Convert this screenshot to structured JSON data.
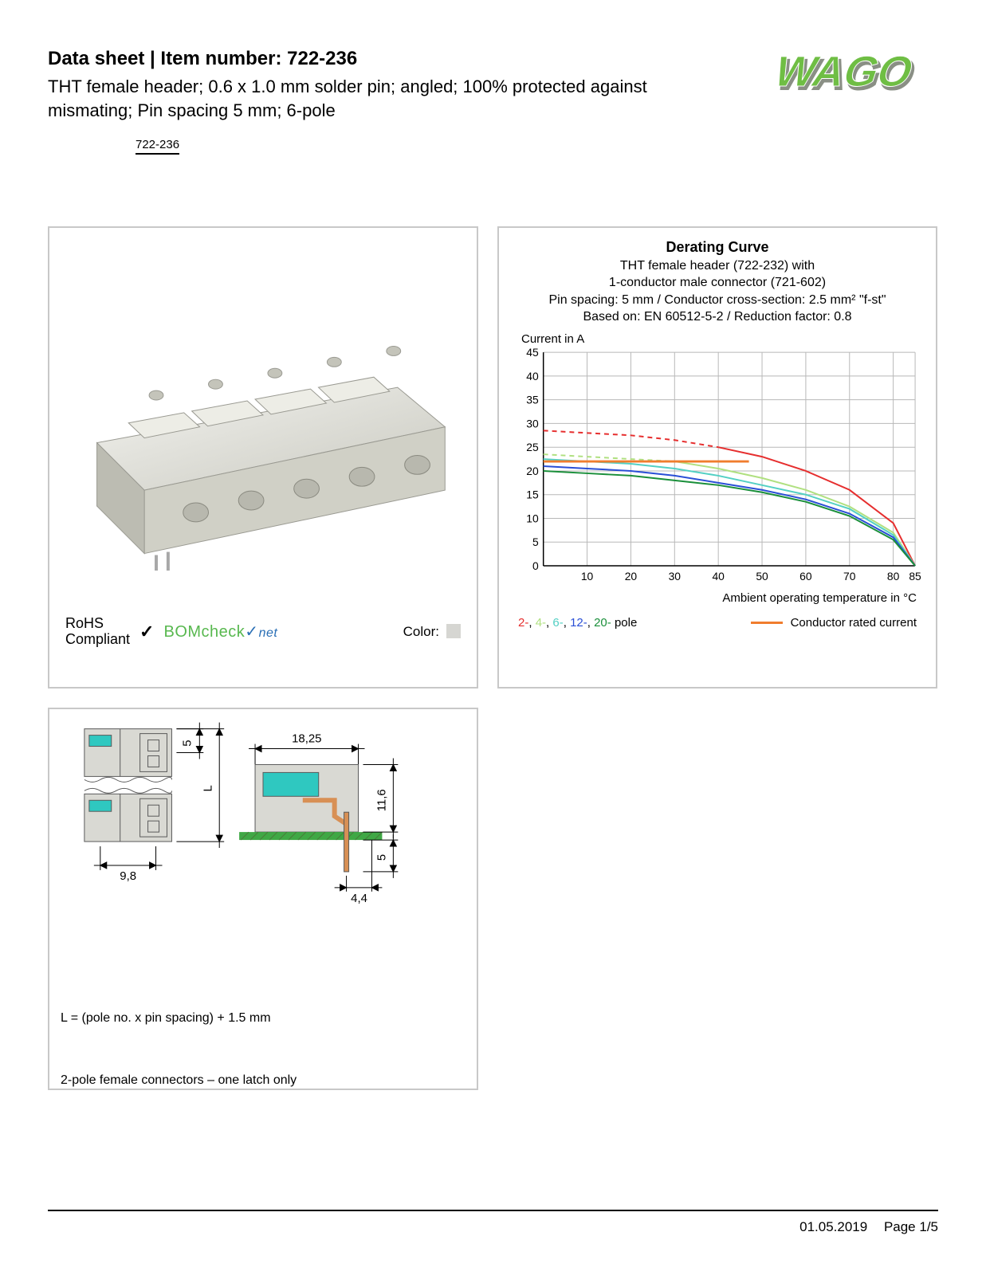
{
  "header": {
    "title_prefix": "Data sheet  |  Item number: ",
    "item_number": "722-236",
    "subtitle": "THT female header; 0.6 x 1.0 mm solder pin; angled; 100% protected against mismating; Pin spacing 5 mm; 6-pole",
    "badge": "722-236"
  },
  "logo": {
    "text": "WAGO",
    "color_main": "#6fbe44",
    "color_shadow": "#8a8f85"
  },
  "product_panel": {
    "rohs_line1": "RoHS",
    "rohs_line2": "Compliant",
    "bomcheck_main": "BOM",
    "bomcheck_mid": "check",
    "bomcheck_net": "net",
    "color_label": "Color:",
    "swatch_color": "#d6d6d2",
    "body_color": "#e2e2da",
    "body_shadow": "#c9c9c0",
    "body_highlight": "#f2f2ee"
  },
  "chart": {
    "title": "Derating Curve",
    "sub1": "THT female header  (722-232) with",
    "sub2": "1-conductor male connector (721-602)",
    "sub3": "Pin spacing: 5 mm / Conductor cross-section: 2.5 mm² \"f-st\"",
    "sub4": "Based on: EN 60512-5-2 / Reduction factor: 0.8",
    "ylabel": "Current in A",
    "xlabel": "Ambient operating temperature in °C",
    "ylim": [
      0,
      45
    ],
    "ytick_step": 5,
    "xlim": [
      0,
      85
    ],
    "xticks": [
      10,
      20,
      30,
      40,
      50,
      60,
      70,
      80,
      85
    ],
    "grid_color": "#b8b8b8",
    "axis_color": "#000",
    "background_color": "#ffffff",
    "title_fontsize": 18,
    "label_fontsize": 15,
    "tick_fontsize": 14,
    "series": [
      {
        "name": "2-pole",
        "color": "#e62e2e",
        "solid_end_x": 40,
        "points": [
          [
            0,
            28.5
          ],
          [
            10,
            28
          ],
          [
            20,
            27.5
          ],
          [
            30,
            26.5
          ],
          [
            40,
            25
          ],
          [
            50,
            23
          ],
          [
            60,
            20
          ],
          [
            70,
            16
          ],
          [
            80,
            9
          ],
          [
            85,
            0
          ]
        ]
      },
      {
        "name": "4-pole",
        "color": "#b0e080",
        "solid_end_x": 30,
        "points": [
          [
            0,
            23.5
          ],
          [
            10,
            23
          ],
          [
            20,
            22.5
          ],
          [
            30,
            22
          ],
          [
            40,
            20.5
          ],
          [
            50,
            18.5
          ],
          [
            60,
            16
          ],
          [
            70,
            12.5
          ],
          [
            80,
            7
          ],
          [
            85,
            0
          ]
        ]
      },
      {
        "name": "6-pole",
        "color": "#53d0c4",
        "solid_end_x": 0,
        "points": [
          [
            0,
            22.5
          ],
          [
            10,
            22
          ],
          [
            20,
            21.5
          ],
          [
            30,
            20.5
          ],
          [
            40,
            19
          ],
          [
            50,
            17
          ],
          [
            60,
            15
          ],
          [
            70,
            12
          ],
          [
            80,
            6.5
          ],
          [
            85,
            0
          ]
        ]
      },
      {
        "name": "12-pole",
        "color": "#2a4fd6",
        "solid_end_x": 0,
        "points": [
          [
            0,
            21
          ],
          [
            10,
            20.5
          ],
          [
            20,
            20
          ],
          [
            30,
            19
          ],
          [
            40,
            17.5
          ],
          [
            50,
            16
          ],
          [
            60,
            14
          ],
          [
            70,
            11
          ],
          [
            80,
            6
          ],
          [
            85,
            0
          ]
        ]
      },
      {
        "name": "20-pole",
        "color": "#1a8f3a",
        "solid_end_x": 0,
        "points": [
          [
            0,
            20
          ],
          [
            10,
            19.5
          ],
          [
            20,
            19
          ],
          [
            30,
            18
          ],
          [
            40,
            17
          ],
          [
            50,
            15.5
          ],
          [
            60,
            13.5
          ],
          [
            70,
            10.5
          ],
          [
            80,
            5.5
          ],
          [
            85,
            0
          ]
        ]
      }
    ],
    "rated_line": {
      "color": "#f07d2e",
      "y": 22.0,
      "x_end": 47
    },
    "legend_poles": [
      {
        "label": "2-",
        "color": "#e62e2e"
      },
      {
        "label": "4-",
        "color": "#b0e080"
      },
      {
        "label": "6-",
        "color": "#53d0c4"
      },
      {
        "label": "12-",
        "color": "#2a4fd6"
      },
      {
        "label": "20-",
        "color": "#1a8f3a"
      }
    ],
    "legend_poles_suffix": " pole",
    "legend_rated_label": "Conductor rated current"
  },
  "drawing": {
    "dims": {
      "pitch": "5",
      "L_label": "L",
      "width_bottom": "9,8",
      "body_w": "18,25",
      "body_h": "11,6",
      "pin_offset": "4,4",
      "pin_down": "5"
    },
    "colors": {
      "body_fill": "#d9d9d3",
      "body_stroke": "#5a5a5a",
      "accent": "#2fc8c0",
      "copper": "#d89055",
      "pcb": "#3fa845",
      "hatch": "#4a7a3a"
    },
    "note1": "L = (pole no. x pin spacing) + 1.5 mm",
    "note2": "2-pole female connectors – one latch only"
  },
  "footer": {
    "date": "01.05.2019",
    "page": "Page 1/5"
  }
}
